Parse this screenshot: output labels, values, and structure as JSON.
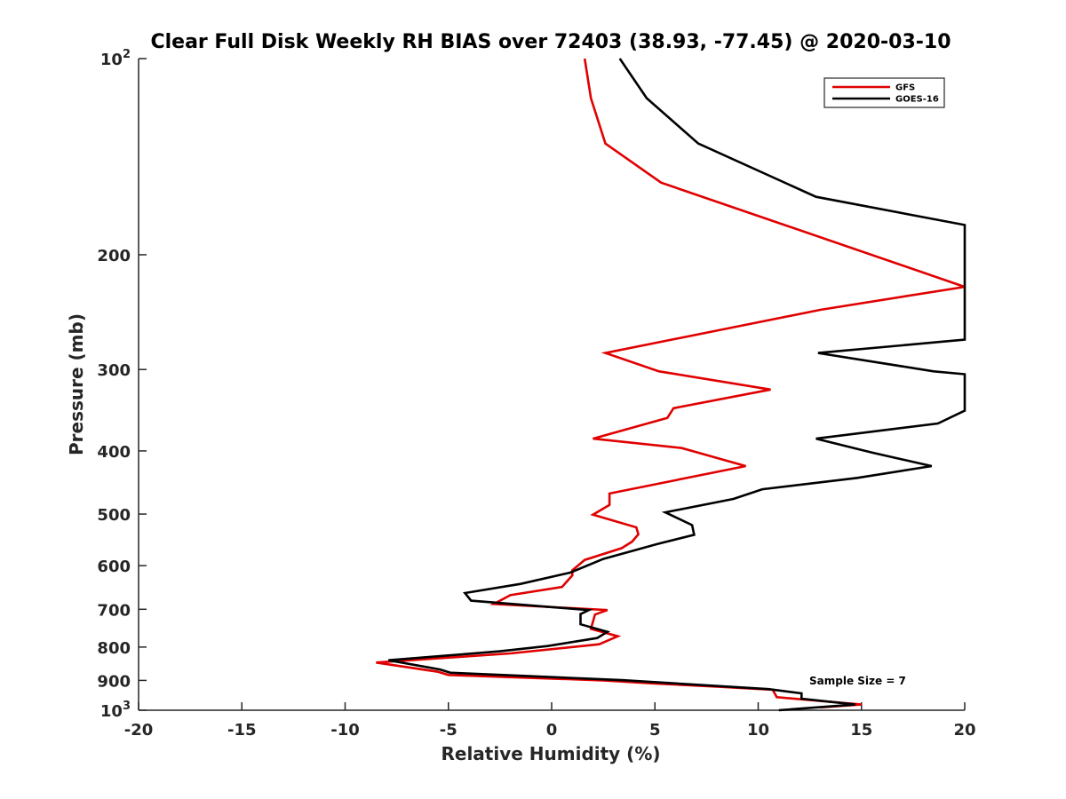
{
  "chart_data": {
    "type": "line",
    "title": "Clear Full Disk Weekly RH BIAS over 72403 (38.93, -77.45) @ 2020-03-10",
    "xlabel": "Relative Humidity (%)",
    "ylabel": "Pressure (mb)",
    "xlim": [
      -20,
      20
    ],
    "ylim": [
      100,
      1000
    ],
    "yscale": "log",
    "y_reversed": true,
    "grid": false,
    "legend_position": "top-right",
    "x_ticks": [
      "-20",
      "-15",
      "-10",
      "-5",
      "0",
      "5",
      "10",
      "15",
      "20"
    ],
    "y_ticks": [
      {
        "value": 100,
        "base": "10",
        "exp": "2"
      },
      {
        "value": 200,
        "label": "200"
      },
      {
        "value": 300,
        "label": "300"
      },
      {
        "value": 400,
        "label": "400"
      },
      {
        "value": 500,
        "label": "500"
      },
      {
        "value": 600,
        "label": "600"
      },
      {
        "value": 700,
        "label": "700"
      },
      {
        "value": 800,
        "label": "800"
      },
      {
        "value": 900,
        "label": "900"
      },
      {
        "value": 1000,
        "base": "10",
        "exp": "3"
      }
    ],
    "annotation": "Sample Size = 7",
    "series": [
      {
        "name": "GFS",
        "color": "#e00000",
        "points": [
          [
            1.6,
            100
          ],
          [
            1.9,
            115
          ],
          [
            2.6,
            135
          ],
          [
            5.3,
            155
          ],
          [
            20,
            224
          ],
          [
            13,
            243
          ],
          [
            2.6,
            283
          ],
          [
            5.2,
            302
          ],
          [
            10.6,
            322
          ],
          [
            5.9,
            344
          ],
          [
            5.6,
            356
          ],
          [
            2.0,
            383
          ],
          [
            6.3,
            396
          ],
          [
            9.4,
            422
          ],
          [
            2.8,
            465
          ],
          [
            2.8,
            484
          ],
          [
            2.0,
            501
          ],
          [
            4.1,
            524
          ],
          [
            4.2,
            537
          ],
          [
            3.9,
            551
          ],
          [
            3.4,
            564
          ],
          [
            1.6,
            588
          ],
          [
            1.0,
            610
          ],
          [
            1.0,
            621
          ],
          [
            0.5,
            647
          ],
          [
            -2.0,
            666
          ],
          [
            -2.8,
            687
          ],
          [
            2.7,
            702
          ],
          [
            2.1,
            713
          ],
          [
            1.9,
            750
          ],
          [
            3.2,
            770
          ],
          [
            2.3,
            792
          ],
          [
            -2.0,
            818
          ],
          [
            -8.5,
            845
          ],
          [
            -5.5,
            873
          ],
          [
            -5.0,
            883
          ],
          [
            2.5,
            900
          ],
          [
            5.0,
            910
          ],
          [
            8.0,
            920
          ],
          [
            10.7,
            930
          ],
          [
            10.9,
            955
          ],
          [
            15.0,
            980
          ],
          [
            13.0,
            990
          ]
        ]
      },
      {
        "name": "GOES-16",
        "color": "#000000",
        "points": [
          [
            3.3,
            100
          ],
          [
            4.6,
            115
          ],
          [
            7.1,
            135
          ],
          [
            12.8,
            163
          ],
          [
            20,
            180
          ],
          [
            20,
            270
          ],
          [
            12.9,
            283
          ],
          [
            18.5,
            302
          ],
          [
            20,
            305
          ],
          [
            20,
            347
          ],
          [
            18.7,
            363
          ],
          [
            12.8,
            383
          ],
          [
            15.6,
            403
          ],
          [
            18.4,
            422
          ],
          [
            14.8,
            440
          ],
          [
            10.2,
            458
          ],
          [
            8.8,
            474
          ],
          [
            5.5,
            497
          ],
          [
            6.8,
            520
          ],
          [
            6.9,
            538
          ],
          [
            5.1,
            556
          ],
          [
            2.5,
            586
          ],
          [
            0.9,
            615
          ],
          [
            -1.5,
            640
          ],
          [
            -4.2,
            661
          ],
          [
            -3.9,
            679
          ],
          [
            1.8,
            702
          ],
          [
            1.4,
            712
          ],
          [
            1.4,
            738
          ],
          [
            2.7,
            758
          ],
          [
            2.2,
            775
          ],
          [
            -0.2,
            797
          ],
          [
            -2.5,
            812
          ],
          [
            -7.9,
            838
          ],
          [
            -5.4,
            866
          ],
          [
            -4.9,
            876
          ],
          [
            3.4,
            899
          ],
          [
            10.5,
            928
          ],
          [
            12.1,
            942
          ],
          [
            12.1,
            960
          ],
          [
            14.7,
            980
          ],
          [
            11.0,
            1000
          ]
        ]
      }
    ]
  }
}
